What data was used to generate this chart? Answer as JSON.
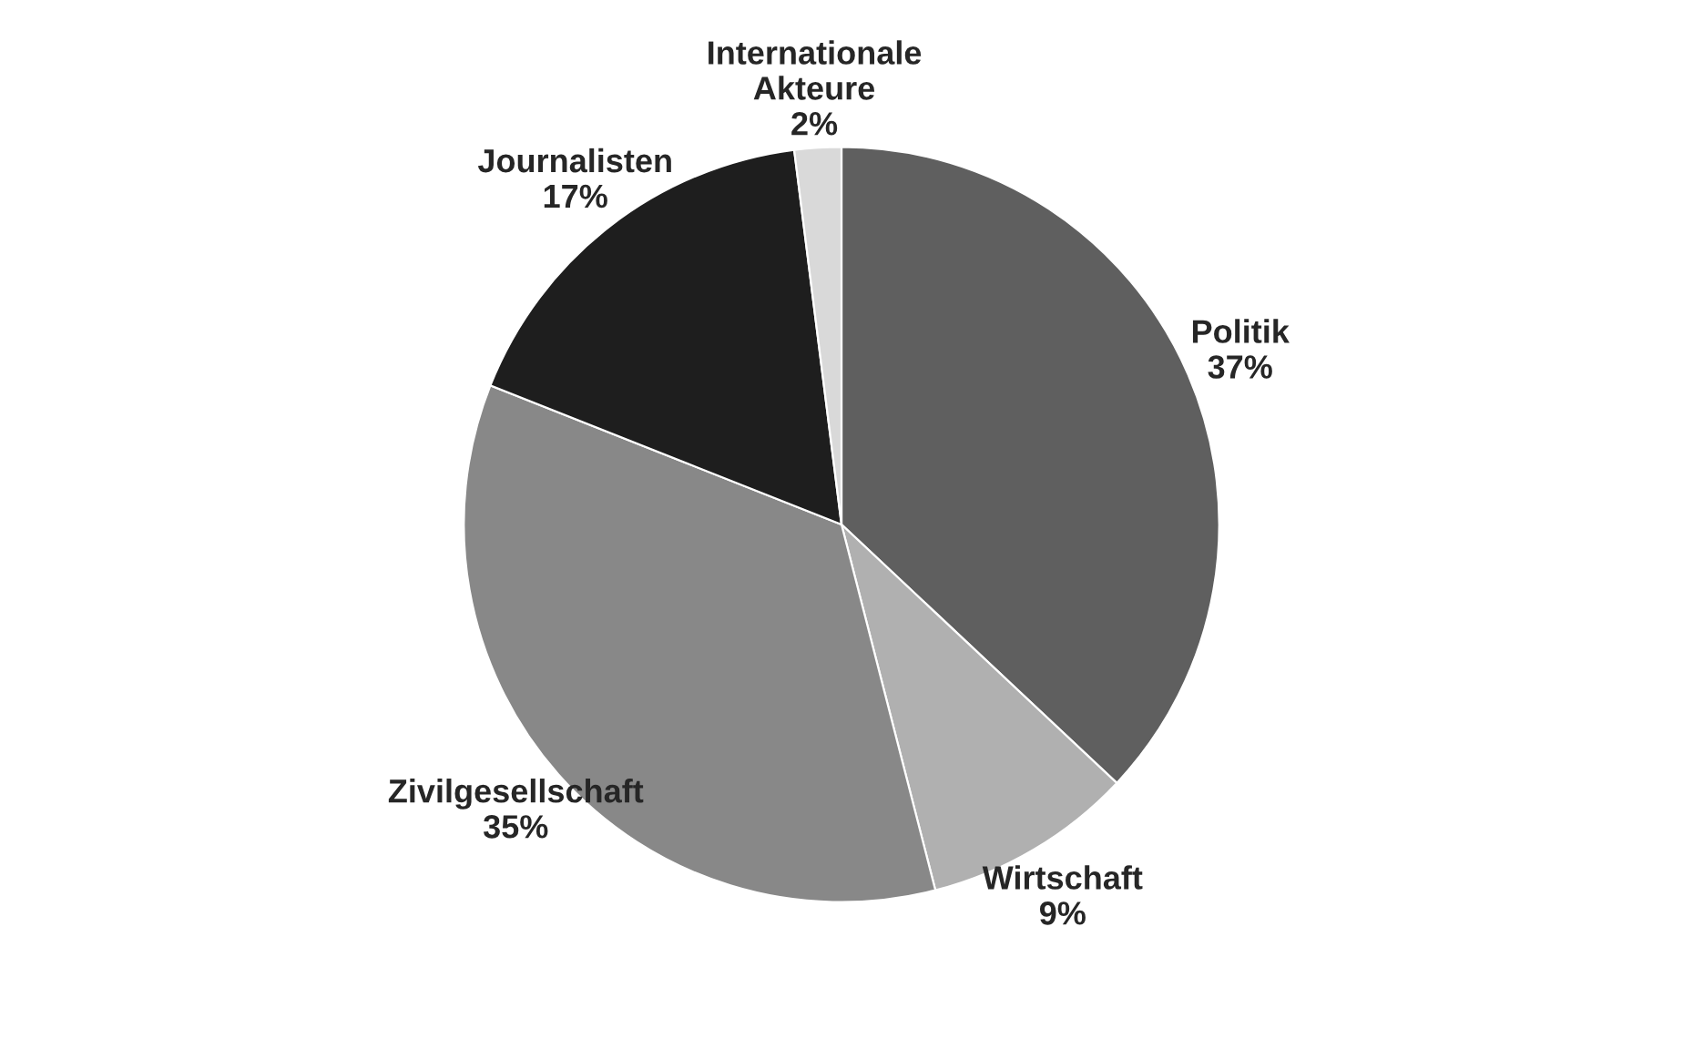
{
  "chart_data": {
    "type": "pie",
    "categories": [
      "Politik",
      "Wirtschaft",
      "Zivilgesellschaft",
      "Journalisten",
      "Internationale\nAkteure"
    ],
    "values": [
      37,
      9,
      35,
      17,
      2
    ],
    "value_labels": [
      "37%",
      "9%",
      "35%",
      "17%",
      "2%"
    ],
    "colors": [
      "#5f5f5f",
      "#b0b0b0",
      "#888888",
      "#1e1e1e",
      "#d9d9d9"
    ],
    "legend": false
  }
}
